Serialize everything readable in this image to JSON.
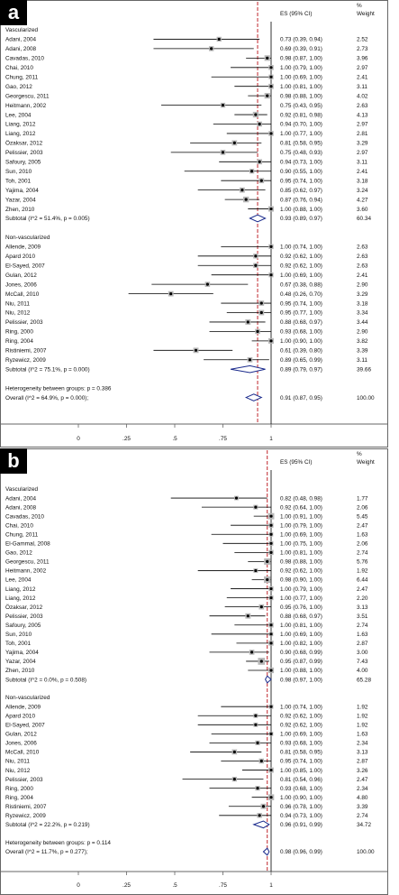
{
  "chart_data": [
    {
      "type": "forest",
      "panel": "a",
      "header": {
        "es": "ES (95% CI)",
        "weight_pct": "%",
        "weight": "Weight"
      },
      "x_ticks": [
        "0",
        ".25",
        ".5",
        ".75",
        "1"
      ],
      "xlim": [
        -0.05,
        1.1
      ],
      "ref_line": 0.93,
      "groups": [
        {
          "name": "Vascularized",
          "studies": [
            {
              "label": "Adani, 2004",
              "es": 0.73,
              "lo": 0.39,
              "hi": 0.94,
              "ci": "0.73 (0.39, 0.94)",
              "w": "2.52"
            },
            {
              "label": "Adani, 2008",
              "es": 0.69,
              "lo": 0.39,
              "hi": 0.91,
              "ci": "0.69 (0.39, 0.91)",
              "w": "2.73"
            },
            {
              "label": "Cavadas, 2010",
              "es": 0.98,
              "lo": 0.87,
              "hi": 1.0,
              "ci": "0.98 (0.87, 1.00)",
              "w": "3.96"
            },
            {
              "label": "Chai, 2010",
              "es": 1.0,
              "lo": 0.79,
              "hi": 1.0,
              "ci": "1.00 (0.79, 1.00)",
              "w": "2.97"
            },
            {
              "label": "Chung, 2011",
              "es": 1.0,
              "lo": 0.69,
              "hi": 1.0,
              "ci": "1.00 (0.69, 1.00)",
              "w": "2.41"
            },
            {
              "label": "Gao, 2012",
              "es": 1.0,
              "lo": 0.81,
              "hi": 1.0,
              "ci": "1.00 (0.81, 1.00)",
              "w": "3.11"
            },
            {
              "label": "Georgescu, 2011",
              "es": 0.98,
              "lo": 0.88,
              "hi": 1.0,
              "ci": "0.98 (0.88, 1.00)",
              "w": "4.02"
            },
            {
              "label": "Heitmann, 2002",
              "es": 0.75,
              "lo": 0.43,
              "hi": 0.95,
              "ci": "0.75 (0.43, 0.95)",
              "w": "2.63"
            },
            {
              "label": "Lee, 2004",
              "es": 0.92,
              "lo": 0.81,
              "hi": 0.98,
              "ci": "0.92 (0.81, 0.98)",
              "w": "4.13"
            },
            {
              "label": "Liang, 2012",
              "es": 0.94,
              "lo": 0.7,
              "hi": 1.0,
              "ci": "0.94 (0.70, 1.00)",
              "w": "2.97"
            },
            {
              "label": "Liang, 2012",
              "es": 1.0,
              "lo": 0.77,
              "hi": 1.0,
              "ci": "1.00 (0.77, 1.00)",
              "w": "2.81"
            },
            {
              "label": "Özaksar, 2012",
              "es": 0.81,
              "lo": 0.58,
              "hi": 0.95,
              "ci": "0.81 (0.58, 0.95)",
              "w": "3.29"
            },
            {
              "label": "Pelissier, 2003",
              "es": 0.75,
              "lo": 0.48,
              "hi": 0.93,
              "ci": "0.75 (0.48, 0.93)",
              "w": "2.97"
            },
            {
              "label": "Safoury, 2005",
              "es": 0.94,
              "lo": 0.73,
              "hi": 1.0,
              "ci": "0.94 (0.73, 1.00)",
              "w": "3.11"
            },
            {
              "label": "Sun, 2010",
              "es": 0.9,
              "lo": 0.55,
              "hi": 1.0,
              "ci": "0.90 (0.55, 1.00)",
              "w": "2.41"
            },
            {
              "label": "Toh, 2001",
              "es": 0.95,
              "lo": 0.74,
              "hi": 1.0,
              "ci": "0.95 (0.74, 1.00)",
              "w": "3.18"
            },
            {
              "label": "Yajima, 2004",
              "es": 0.85,
              "lo": 0.62,
              "hi": 0.97,
              "ci": "0.85 (0.62, 0.97)",
              "w": "3.24"
            },
            {
              "label": "Yazar, 2004",
              "es": 0.87,
              "lo": 0.76,
              "hi": 0.94,
              "ci": "0.87 (0.76, 0.94)",
              "w": "4.27"
            },
            {
              "label": "Zhen, 2010",
              "es": 1.0,
              "lo": 0.88,
              "hi": 1.0,
              "ci": "1.00 (0.88, 1.00)",
              "w": "3.60"
            }
          ],
          "subtotal": {
            "label": "Subtotal  (I^2 = 51.4%, p = 0.005)",
            "es": 0.93,
            "lo": 0.89,
            "hi": 0.97,
            "ci": "0.93 (0.89, 0.97)",
            "w": "60.34"
          }
        },
        {
          "name": "Non-vascularized",
          "studies": [
            {
              "label": "Allende, 2009",
              "es": 1.0,
              "lo": 0.74,
              "hi": 1.0,
              "ci": "1.00 (0.74, 1.00)",
              "w": "2.63"
            },
            {
              "label": "Apard 2010",
              "es": 0.92,
              "lo": 0.62,
              "hi": 1.0,
              "ci": "0.92 (0.62, 1.00)",
              "w": "2.63"
            },
            {
              "label": "El-Sayed, 2007",
              "es": 0.92,
              "lo": 0.62,
              "hi": 1.0,
              "ci": "0.92 (0.62, 1.00)",
              "w": "2.63"
            },
            {
              "label": "Gulan, 2012",
              "es": 1.0,
              "lo": 0.69,
              "hi": 1.0,
              "ci": "1.00 (0.69, 1.00)",
              "w": "2.41"
            },
            {
              "label": "Jones, 2006",
              "es": 0.67,
              "lo": 0.38,
              "hi": 0.88,
              "ci": "0.67 (0.38, 0.88)",
              "w": "2.90"
            },
            {
              "label": "McCall, 2010",
              "es": 0.48,
              "lo": 0.26,
              "hi": 0.7,
              "ci": "0.48 (0.26, 0.70)",
              "w": "3.29"
            },
            {
              "label": "Niu, 2011",
              "es": 0.95,
              "lo": 0.74,
              "hi": 1.0,
              "ci": "0.95 (0.74, 1.00)",
              "w": "3.18"
            },
            {
              "label": "Niu, 2012",
              "es": 0.95,
              "lo": 0.77,
              "hi": 1.0,
              "ci": "0.95 (0.77, 1.00)",
              "w": "3.34"
            },
            {
              "label": "Pelissier, 2003",
              "es": 0.88,
              "lo": 0.68,
              "hi": 0.97,
              "ci": "0.88 (0.68, 0.97)",
              "w": "3.44"
            },
            {
              "label": "Ring, 2000",
              "es": 0.93,
              "lo": 0.68,
              "hi": 1.0,
              "ci": "0.93 (0.68, 1.00)",
              "w": "2.90"
            },
            {
              "label": "Ring, 2004",
              "es": 1.0,
              "lo": 0.9,
              "hi": 1.0,
              "ci": "1.00 (0.90, 1.00)",
              "w": "3.82"
            },
            {
              "label": "Ristiniemi, 2007",
              "es": 0.61,
              "lo": 0.39,
              "hi": 0.8,
              "ci": "0.61 (0.39, 0.80)",
              "w": "3.39"
            },
            {
              "label": "Ryzewicz, 2009",
              "es": 0.89,
              "lo": 0.65,
              "hi": 0.99,
              "ci": "0.89 (0.65, 0.99)",
              "w": "3.11"
            }
          ],
          "subtotal": {
            "label": "Subtotal  (I^2 = 75.1%, p = 0.000)",
            "es": 0.89,
            "lo": 0.79,
            "hi": 0.97,
            "ci": "0.89 (0.79, 0.97)",
            "w": "39.66"
          }
        }
      ],
      "heterogeneity": "Heterogeneity between groups: p = 0.386",
      "overall": {
        "label": "Overall  (I^2 = 64.9%, p = 0.000);",
        "es": 0.91,
        "lo": 0.87,
        "hi": 0.95,
        "ci": "0.91 (0.87, 0.95)",
        "w": "100.00"
      }
    },
    {
      "type": "forest",
      "panel": "b",
      "header": {
        "es": "ES (95% CI)",
        "weight_pct": "%",
        "weight": "Weight"
      },
      "x_ticks": [
        "0",
        ".25",
        ".5",
        ".75",
        "1"
      ],
      "xlim": [
        -0.05,
        1.1
      ],
      "ref_line": 0.98,
      "groups": [
        {
          "name": "Vascularized",
          "studies": [
            {
              "label": "Adani, 2004",
              "es": 0.82,
              "lo": 0.48,
              "hi": 0.98,
              "ci": "0.82 (0.48, 0.98)",
              "w": "1.77"
            },
            {
              "label": "Adani, 2008",
              "es": 0.92,
              "lo": 0.64,
              "hi": 1.0,
              "ci": "0.92 (0.64, 1.00)",
              "w": "2.06"
            },
            {
              "label": "Cavadas, 2010",
              "es": 1.0,
              "lo": 0.91,
              "hi": 1.0,
              "ci": "1.00 (0.91, 1.00)",
              "w": "5.45"
            },
            {
              "label": "Chai, 2010",
              "es": 1.0,
              "lo": 0.79,
              "hi": 1.0,
              "ci": "1.00 (0.79, 1.00)",
              "w": "2.47"
            },
            {
              "label": "Chung, 2011",
              "es": 1.0,
              "lo": 0.69,
              "hi": 1.0,
              "ci": "1.00 (0.69, 1.00)",
              "w": "1.63"
            },
            {
              "label": "El-Gammal, 2008",
              "es": 1.0,
              "lo": 0.75,
              "hi": 1.0,
              "ci": "1.00 (0.75, 1.00)",
              "w": "2.06"
            },
            {
              "label": "Gao, 2012",
              "es": 1.0,
              "lo": 0.81,
              "hi": 1.0,
              "ci": "1.00 (0.81, 1.00)",
              "w": "2.74"
            },
            {
              "label": "Georgescu, 2011",
              "es": 0.98,
              "lo": 0.88,
              "hi": 1.0,
              "ci": "0.98 (0.88, 1.00)",
              "w": "5.76"
            },
            {
              "label": "Heitmann, 2002",
              "es": 0.92,
              "lo": 0.62,
              "hi": 1.0,
              "ci": "0.92 (0.62, 1.00)",
              "w": "1.92"
            },
            {
              "label": "Lee, 2004",
              "es": 0.98,
              "lo": 0.9,
              "hi": 1.0,
              "ci": "0.98 (0.90, 1.00)",
              "w": "6.44"
            },
            {
              "label": "Liang, 2012",
              "es": 1.0,
              "lo": 0.79,
              "hi": 1.0,
              "ci": "1.00 (0.79, 1.00)",
              "w": "2.47"
            },
            {
              "label": "Liang, 2012",
              "es": 1.0,
              "lo": 0.77,
              "hi": 1.0,
              "ci": "1.00 (0.77, 1.00)",
              "w": "2.20"
            },
            {
              "label": "Özaksar, 2012",
              "es": 0.95,
              "lo": 0.76,
              "hi": 1.0,
              "ci": "0.95 (0.76, 1.00)",
              "w": "3.13"
            },
            {
              "label": "Pelissier, 2003",
              "es": 0.88,
              "lo": 0.68,
              "hi": 0.97,
              "ci": "0.88 (0.68, 0.97)",
              "w": "3.51"
            },
            {
              "label": "Safoury, 2005",
              "es": 1.0,
              "lo": 0.81,
              "hi": 1.0,
              "ci": "1.00 (0.81, 1.00)",
              "w": "2.74"
            },
            {
              "label": "Sun, 2010",
              "es": 1.0,
              "lo": 0.69,
              "hi": 1.0,
              "ci": "1.00 (0.69, 1.00)",
              "w": "1.63"
            },
            {
              "label": "Toh, 2001",
              "es": 1.0,
              "lo": 0.82,
              "hi": 1.0,
              "ci": "1.00 (0.82, 1.00)",
              "w": "2.87"
            },
            {
              "label": "Yajima, 2004",
              "es": 0.9,
              "lo": 0.68,
              "hi": 0.99,
              "ci": "0.90 (0.68, 0.99)",
              "w": "3.00"
            },
            {
              "label": "Yazar, 2004",
              "es": 0.95,
              "lo": 0.87,
              "hi": 0.99,
              "ci": "0.95 (0.87, 0.99)",
              "w": "7.43"
            },
            {
              "label": "Zhen, 2010",
              "es": 1.0,
              "lo": 0.88,
              "hi": 1.0,
              "ci": "1.00 (0.88, 1.00)",
              "w": "4.00"
            }
          ],
          "subtotal": {
            "label": "Subtotal  (I^2 = 0.0%, p = 0.508)",
            "es": 0.98,
            "lo": 0.97,
            "hi": 1.0,
            "ci": "0.98 (0.97, 1.00)",
            "w": "65.28"
          }
        },
        {
          "name": "Non-vascularized",
          "studies": [
            {
              "label": "Allende, 2009",
              "es": 1.0,
              "lo": 0.74,
              "hi": 1.0,
              "ci": "1.00 (0.74, 1.00)",
              "w": "1.92"
            },
            {
              "label": "Apard 2010",
              "es": 0.92,
              "lo": 0.62,
              "hi": 1.0,
              "ci": "0.92 (0.62, 1.00)",
              "w": "1.92"
            },
            {
              "label": "El-Sayed, 2007",
              "es": 0.92,
              "lo": 0.62,
              "hi": 1.0,
              "ci": "0.92 (0.62, 1.00)",
              "w": "1.92"
            },
            {
              "label": "Gulan, 2012",
              "es": 1.0,
              "lo": 0.69,
              "hi": 1.0,
              "ci": "1.00 (0.69, 1.00)",
              "w": "1.63"
            },
            {
              "label": "Jones, 2006",
              "es": 0.93,
              "lo": 0.68,
              "hi": 1.0,
              "ci": "0.93 (0.68, 1.00)",
              "w": "2.34"
            },
            {
              "label": "McCall, 2010",
              "es": 0.81,
              "lo": 0.58,
              "hi": 0.95,
              "ci": "0.81 (0.58, 0.95)",
              "w": "3.13"
            },
            {
              "label": "Niu, 2011",
              "es": 0.95,
              "lo": 0.74,
              "hi": 1.0,
              "ci": "0.95 (0.74, 1.00)",
              "w": "2.87"
            },
            {
              "label": "Niu, 2012",
              "es": 1.0,
              "lo": 0.85,
              "hi": 1.0,
              "ci": "1.00 (0.85, 1.00)",
              "w": "3.26"
            },
            {
              "label": "Pelissier, 2003",
              "es": 0.81,
              "lo": 0.54,
              "hi": 0.96,
              "ci": "0.81 (0.54, 0.96)",
              "w": "2.47"
            },
            {
              "label": "Ring, 2000",
              "es": 0.93,
              "lo": 0.68,
              "hi": 1.0,
              "ci": "0.93 (0.68, 1.00)",
              "w": "2.34"
            },
            {
              "label": "Ring, 2004",
              "es": 1.0,
              "lo": 0.9,
              "hi": 1.0,
              "ci": "1.00 (0.90, 1.00)",
              "w": "4.80"
            },
            {
              "label": "Ristiniemi, 2007",
              "es": 0.96,
              "lo": 0.78,
              "hi": 1.0,
              "ci": "0.96 (0.78, 1.00)",
              "w": "3.39"
            },
            {
              "label": "Ryzewicz, 2009",
              "es": 0.94,
              "lo": 0.73,
              "hi": 1.0,
              "ci": "0.94 (0.73, 1.00)",
              "w": "2.74"
            }
          ],
          "subtotal": {
            "label": "Subtotal  (I^2 = 22.2%, p = 0.219)",
            "es": 0.96,
            "lo": 0.91,
            "hi": 0.99,
            "ci": "0.96 (0.91, 0.99)",
            "w": "34.72"
          }
        }
      ],
      "heterogeneity": "Heterogeneity between groups: p = 0.114",
      "overall": {
        "label": "Overall  (I^2 = 11.7%, p = 0.277);",
        "es": 0.98,
        "lo": 0.96,
        "hi": 0.99,
        "ci": "0.98 (0.96, 0.99)",
        "w": "100.00"
      }
    }
  ],
  "colors": {
    "badge": "#000000",
    "badge_text": "#ffffff",
    "ref_line": "#c0262c",
    "diamond": "#1a2a8c",
    "weight_box": "#b8b8b8",
    "line": "#000000"
  }
}
